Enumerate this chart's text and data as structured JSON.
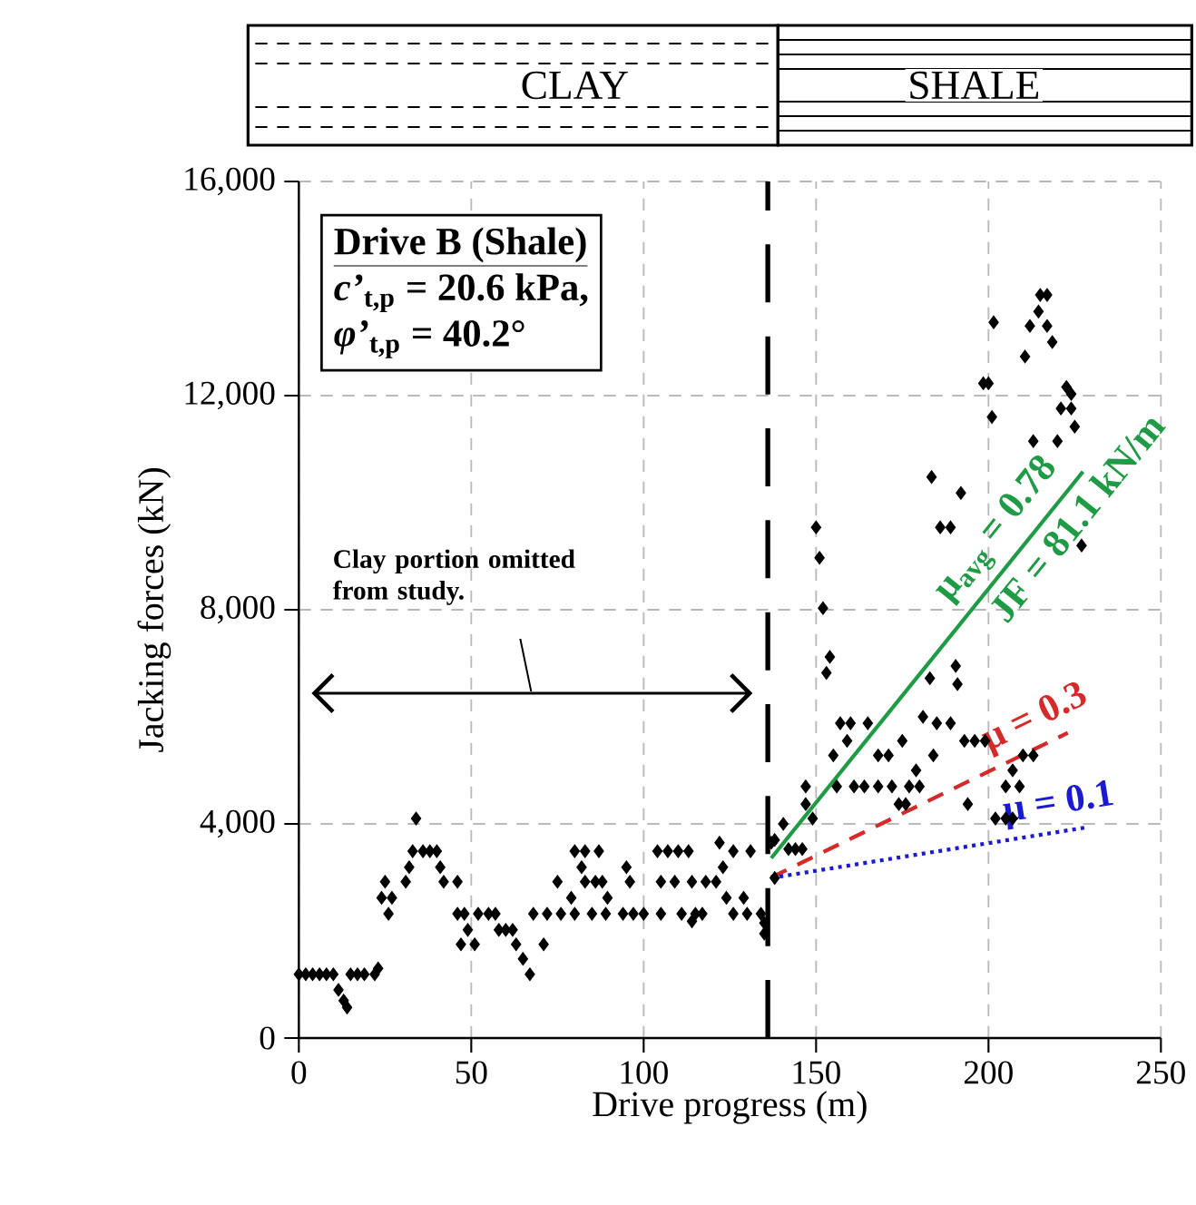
{
  "chart_data": {
    "type": "scatter",
    "xlabel": "Drive progress (m)",
    "ylabel": "Jacking forces (kN)",
    "xlim": [
      0,
      250
    ],
    "ylim": [
      0,
      16000
    ],
    "xticks": [
      0,
      50,
      100,
      150,
      200,
      250
    ],
    "yticks": [
      0,
      {
        "value": 4000,
        "label": "4,000"
      },
      {
        "value": 8000,
        "label": "8,000"
      },
      {
        "value": 12000,
        "label": "12,000"
      },
      {
        "value": 16000,
        "label": "16,000"
      }
    ],
    "grid": true,
    "series": [
      {
        "color": "#000000",
        "marker": "diamond",
        "x": [
          0,
          2,
          4,
          6,
          8,
          10,
          11.5,
          13,
          14,
          15,
          17,
          19,
          22,
          23,
          24,
          25,
          26,
          27,
          31,
          32,
          33,
          34,
          36,
          38,
          40,
          41,
          42,
          46,
          46,
          48,
          49,
          47,
          51,
          52,
          55,
          57,
          58,
          60,
          62,
          63,
          65,
          67,
          71,
          68,
          72,
          76,
          80,
          75,
          79,
          80,
          82,
          83,
          83,
          86,
          87,
          88,
          85,
          89,
          94,
          89.5,
          95,
          96,
          97,
          100,
          105,
          104,
          107,
          110,
          113,
          105,
          109,
          114,
          111,
          114,
          115,
          117,
          118,
          121,
          122,
          123,
          124,
          129,
          126,
          131,
          126,
          130,
          134,
          135,
          135,
          137,
          138,
          138,
          140.5,
          142,
          144,
          146,
          149,
          147,
          147,
          150,
          151,
          152,
          153,
          154,
          155,
          156,
          157,
          159,
          160,
          161,
          164,
          165,
          168,
          168,
          171,
          172,
          174,
          175,
          176,
          177,
          179,
          180,
          181,
          183,
          183.5,
          184,
          185,
          186,
          189,
          189,
          190.5,
          191,
          192,
          193,
          194,
          196,
          199,
          198.5,
          200,
          201,
          201.5,
          202,
          205,
          207,
          205,
          209,
          207,
          210,
          213,
          210.6,
          212,
          213,
          214.5,
          215,
          217,
          217,
          218.5,
          220,
          221,
          222.6,
          224,
          224,
          225,
          227
        ],
        "values": [
          1190,
          1190,
          1190,
          1190,
          1190,
          1190,
          900,
          700,
          570,
          1190,
          1190,
          1190,
          1190,
          1300,
          2620,
          2920,
          2320,
          2620,
          2920,
          3190,
          3490,
          4100,
          3490,
          3490,
          3490,
          3190,
          2920,
          2920,
          2320,
          2320,
          2020,
          1750,
          1750,
          2320,
          2320,
          2320,
          2020,
          2020,
          2020,
          1750,
          1480,
          1190,
          1750,
          2320,
          2320,
          2320,
          2320,
          2920,
          2620,
          3490,
          3190,
          2920,
          3490,
          2920,
          3490,
          2920,
          2320,
          2320,
          2320,
          2620,
          3190,
          2920,
          2320,
          2320,
          2320,
          3490,
          3490,
          3490,
          3490,
          2920,
          2920,
          2920,
          2320,
          2180,
          2320,
          2320,
          2920,
          2920,
          3650,
          3190,
          2620,
          2620,
          3490,
          3490,
          2320,
          2320,
          2320,
          2150,
          1950,
          3650,
          2990,
          3700,
          4000,
          3530,
          3530,
          3530,
          4100,
          4370,
          4700,
          9540,
          8970,
          8030,
          6820,
          7120,
          5280,
          4700,
          5880,
          5550,
          5880,
          4700,
          4700,
          5880,
          4700,
          5280,
          5280,
          4700,
          4370,
          5550,
          4370,
          4700,
          5000,
          4700,
          6000,
          6720,
          10480,
          5280,
          5880,
          9540,
          9540,
          5880,
          6950,
          6610,
          10180,
          5550,
          4370,
          5550,
          5550,
          12230,
          12230,
          11600,
          13370,
          4100,
          4100,
          4100,
          4700,
          4700,
          5000,
          5280,
          5280,
          12730,
          13300,
          11150,
          13570,
          13880,
          13880,
          13300,
          13000,
          11150,
          11760,
          12160,
          12030,
          11760,
          11420,
          9200
        ]
      },
      {
        "type": "line",
        "name": "μ$_{avg}$ = 0.78",
        "color": "#1f9a45",
        "line_style": "solid",
        "x": [
          137,
          227.4
        ],
        "values": [
          3360,
          10580
        ]
      },
      {
        "type": "line",
        "name": "μ = 0.3",
        "color": "#d42a2a",
        "line_style": "dashed",
        "x": [
          137,
          223
        ],
        "values": [
          3000,
          5700
        ]
      },
      {
        "type": "line",
        "name": "μ = 0.1",
        "color": "#1a1ad0",
        "line_style": "dotted",
        "x": [
          137,
          228
        ],
        "values": [
          2990,
          3930
        ]
      }
    ],
    "ref_lines": [
      {
        "axis": "x",
        "value": 136,
        "color": "#000000",
        "line_style": "dashed"
      }
    ],
    "annotations": [
      "CLAY",
      "SHALE",
      "Drive B (Shale)",
      "*c’*$_{t,p}$ = 20.6 kPa,",
      "*φ’*$_{t,p}$ = 40.2°",
      "JF = 81.1 kN/m",
      "Clay portion omitted from study."
    ]
  }
}
